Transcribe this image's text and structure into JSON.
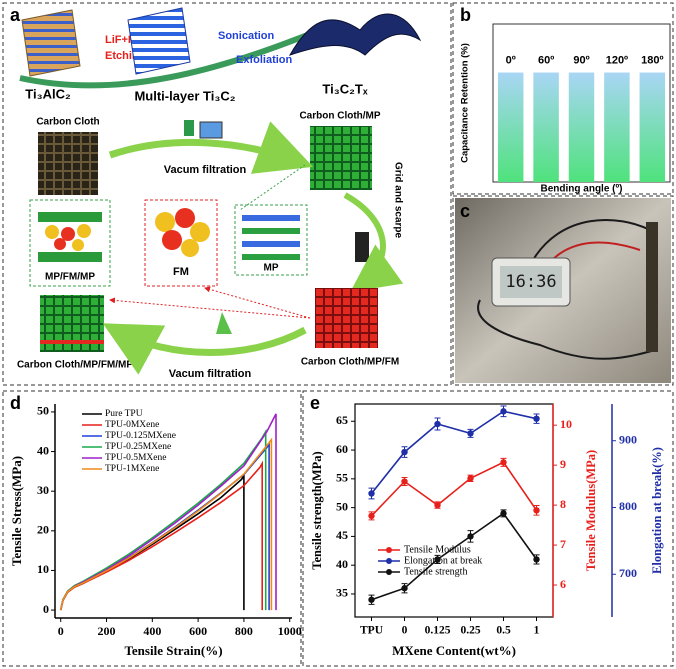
{
  "diagram": {
    "panel": "a",
    "stage_labels": [
      "Ti₃AlC₂",
      "Multi-layer Ti₃C₂",
      "Ti₃C₂Tₓ"
    ],
    "etching": [
      "LiF+HCl",
      "Etching"
    ],
    "exfoliation": [
      "Sonication",
      "Exfoliation"
    ],
    "nodes": [
      "Carbon Cloth",
      "Carbon Cloth/MP",
      "MP/FM/MP",
      "FM",
      "MP",
      "Carbon Cloth/MP/FM/MP",
      "Carbon Cloth/MP/FM"
    ],
    "steps": [
      "Vacum filtration",
      "Grid and scarpe",
      "Vacum filtration"
    ]
  },
  "photo": {
    "panel": "c",
    "clock": "16:36"
  },
  "chart_data": [
    {
      "type": "bar",
      "panel": "b",
      "y_label": "Capacitance Retention (%)",
      "x_label": "Bending angle (º)",
      "categories": [
        "0º",
        "60º",
        "90º",
        "120º",
        "180º"
      ],
      "values": [
        97,
        97,
        97,
        97,
        97
      ],
      "ylim": [
        0,
        140
      ],
      "gradient": [
        "#a9d6f5",
        "#4fe27c"
      ]
    },
    {
      "type": "line",
      "panel": "d",
      "x_label": "Tensile Strain(%)",
      "y_label": "Tensile Stress(MPa)",
      "xlim": [
        -25,
        1010
      ],
      "ylim": [
        -2,
        52
      ],
      "xticks": [
        0,
        200,
        400,
        600,
        800,
        1000
      ],
      "yticks": [
        0,
        10,
        20,
        30,
        40,
        50
      ],
      "series": [
        {
          "name": "Pure TPU",
          "color": "#000000",
          "x": [
            0,
            10,
            30,
            60,
            100,
            200,
            300,
            400,
            500,
            600,
            700,
            790,
            800,
            800
          ],
          "values": [
            0,
            2.5,
            4.5,
            5.8,
            6.8,
            9.8,
            13,
            16.6,
            20.4,
            24.3,
            28.4,
            33,
            34,
            0
          ]
        },
        {
          "name": "TPU-0MXene",
          "color": "#e8201c",
          "x": [
            0,
            10,
            30,
            60,
            100,
            200,
            300,
            400,
            500,
            600,
            700,
            800,
            870,
            880,
            880
          ],
          "values": [
            0,
            2.5,
            4.5,
            5.8,
            6.8,
            9.6,
            12.6,
            16,
            19.6,
            23.3,
            27.2,
            31.4,
            36,
            37,
            0
          ]
        },
        {
          "name": "TPU-0.125MXene",
          "color": "#2040d8",
          "x": [
            0,
            10,
            30,
            60,
            100,
            200,
            300,
            400,
            500,
            600,
            700,
            800,
            900,
            910,
            910
          ],
          "values": [
            0,
            2.6,
            4.7,
            6,
            7,
            10,
            13.3,
            17,
            21,
            25.2,
            29.6,
            34.2,
            41,
            42,
            0
          ]
        },
        {
          "name": "TPU-0.25MXene",
          "color": "#1aa84a",
          "x": [
            0,
            10,
            30,
            60,
            100,
            200,
            300,
            400,
            500,
            600,
            700,
            800,
            880,
            895,
            895
          ],
          "values": [
            0,
            2.7,
            4.8,
            6.2,
            7.3,
            10.6,
            14.2,
            18.2,
            22.5,
            27,
            31.8,
            37,
            43.5,
            45,
            0
          ]
        },
        {
          "name": "TPU-0.5MXene",
          "color": "#a020c8",
          "x": [
            0,
            10,
            30,
            60,
            100,
            200,
            300,
            400,
            500,
            600,
            700,
            800,
            900,
            940,
            940
          ],
          "values": [
            0,
            2.6,
            4.6,
            6,
            7.1,
            10.2,
            13.8,
            17.8,
            22,
            26.5,
            31.3,
            36.4,
            45,
            49.5,
            0
          ]
        },
        {
          "name": "TPU-1MXene",
          "color": "#f08a18",
          "x": [
            0,
            10,
            30,
            60,
            100,
            200,
            300,
            400,
            500,
            600,
            700,
            800,
            900,
            920,
            920
          ],
          "values": [
            0,
            2.6,
            4.6,
            5.9,
            6.9,
            9.9,
            13.2,
            16.9,
            20.8,
            25,
            29.5,
            34.3,
            41.5,
            43,
            0
          ]
        }
      ]
    },
    {
      "type": "line",
      "panel": "e",
      "x_label": "MXene Content(wt%)",
      "y_label": "Tensile strength(MPa)",
      "y2_label": "Tensile Modulus(MPa)",
      "y3_label": "Elongation at break(%)",
      "categories": [
        "TPU",
        "0",
        "0.125",
        "0.25",
        "0.5",
        "1"
      ],
      "ylim": [
        31,
        68
      ],
      "yticks": [
        35,
        40,
        45,
        50,
        55,
        60,
        65
      ],
      "y2lim": [
        5.2,
        10.53
      ],
      "y2ticks": [
        6,
        7,
        8,
        9,
        10
      ],
      "y3lim": [
        636,
        955
      ],
      "y3ticks": [
        700,
        800,
        900
      ],
      "series": [
        {
          "name": "Tensile Modulus",
          "color": "#e8201c",
          "axis": "y2",
          "values": [
            7.73,
            8.59,
            8.0,
            8.67,
            9.07,
            7.87
          ],
          "errors": [
            0.1,
            0.1,
            0.08,
            0.08,
            0.1,
            0.12
          ]
        },
        {
          "name": "Elongation at break",
          "color": "#1f2fa8",
          "axis": "y3",
          "values": [
            821,
            883,
            925,
            911,
            944,
            933
          ],
          "errors": [
            8,
            8,
            9,
            6,
            8,
            7
          ]
        },
        {
          "name": "Tensile strength",
          "color": "#111111",
          "axis": "y",
          "values": [
            34,
            36,
            41,
            45,
            49,
            41
          ],
          "errors": [
            0.8,
            0.8,
            0.7,
            1,
            0.6,
            0.8
          ]
        }
      ]
    }
  ]
}
